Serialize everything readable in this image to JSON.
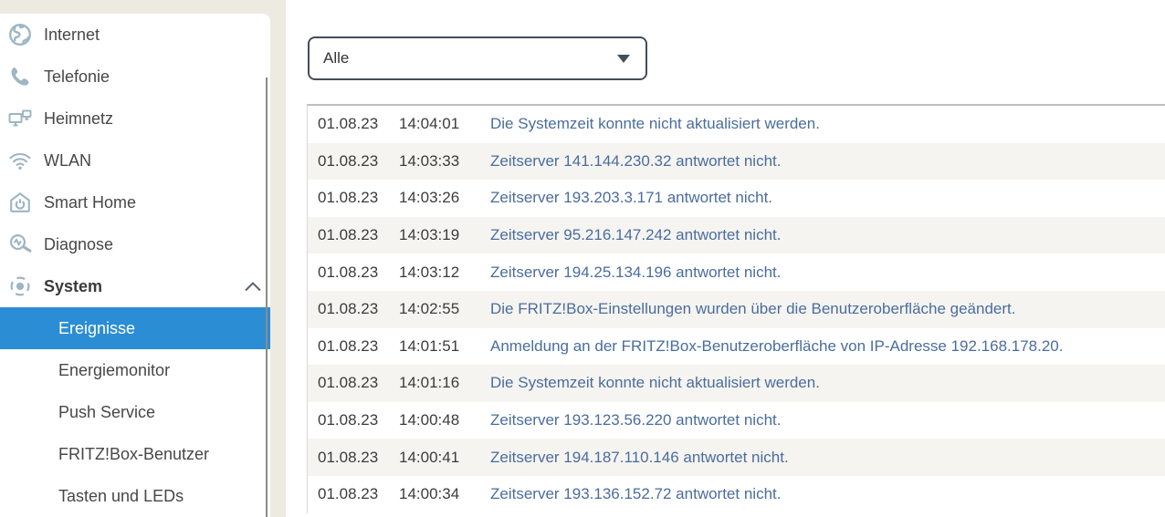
{
  "sidebar": {
    "items": [
      {
        "label": "Internet",
        "icon": "globe"
      },
      {
        "label": "Telefonie",
        "icon": "phone"
      },
      {
        "label": "Heimnetz",
        "icon": "home-network"
      },
      {
        "label": "WLAN",
        "icon": "wifi"
      },
      {
        "label": "Smart Home",
        "icon": "smart-home"
      },
      {
        "label": "Diagnose",
        "icon": "diagnose"
      },
      {
        "label": "System",
        "icon": "system",
        "expanded": true
      }
    ],
    "system_subitems": [
      {
        "label": "Ereignisse",
        "selected": true
      },
      {
        "label": "Energiemonitor"
      },
      {
        "label": "Push Service"
      },
      {
        "label": "FRITZ!Box-Benutzer"
      },
      {
        "label": "Tasten und LEDs"
      }
    ]
  },
  "filter": {
    "selected": "Alle"
  },
  "log": {
    "rows": [
      {
        "date": "01.08.23",
        "time": "14:04:01",
        "message": "Die Systemzeit konnte nicht aktualisiert werden."
      },
      {
        "date": "01.08.23",
        "time": "14:03:33",
        "message": "Zeitserver 141.144.230.32 antwortet nicht."
      },
      {
        "date": "01.08.23",
        "time": "14:03:26",
        "message": "Zeitserver 193.203.3.171 antwortet nicht."
      },
      {
        "date": "01.08.23",
        "time": "14:03:19",
        "message": "Zeitserver 95.216.147.242 antwortet nicht."
      },
      {
        "date": "01.08.23",
        "time": "14:03:12",
        "message": "Zeitserver 194.25.134.196 antwortet nicht."
      },
      {
        "date": "01.08.23",
        "time": "14:02:55",
        "message": "Die FRITZ!Box-Einstellungen wurden über die Benutzeroberfläche geändert."
      },
      {
        "date": "01.08.23",
        "time": "14:01:51",
        "message": "Anmeldung an der FRITZ!Box-Benutzeroberfläche von IP-Adresse 192.168.178.20."
      },
      {
        "date": "01.08.23",
        "time": "14:01:16",
        "message": "Die Systemzeit konnte nicht aktualisiert werden."
      },
      {
        "date": "01.08.23",
        "time": "14:00:48",
        "message": "Zeitserver 193.123.56.220 antwortet nicht."
      },
      {
        "date": "01.08.23",
        "time": "14:00:41",
        "message": "Zeitserver 194.187.110.146 antwortet nicht."
      },
      {
        "date": "01.08.23",
        "time": "14:00:34",
        "message": "Zeitserver 193.136.152.72 antwortet nicht."
      }
    ]
  },
  "colors": {
    "accent_blue": "#2b8dd3",
    "link_blue": "#4a6d9e",
    "icon_slate": "#9db5c4",
    "page_bg": "#edeae2",
    "row_stripe": "#f5f4f1",
    "dropdown_border": "#434e59"
  }
}
